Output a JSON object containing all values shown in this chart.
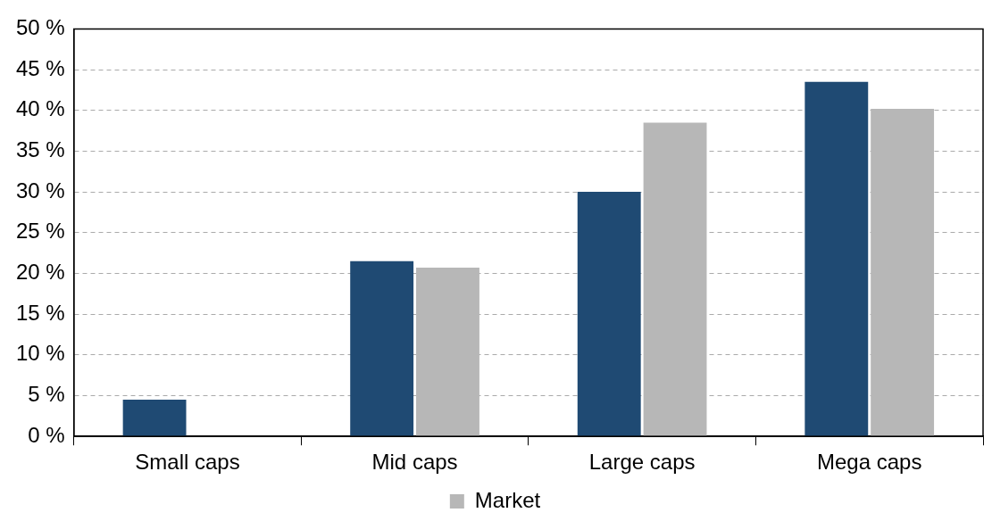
{
  "chart_data": {
    "type": "bar",
    "categories": [
      "Small caps",
      "Mid caps",
      "Large caps",
      "Mega caps"
    ],
    "series": [
      {
        "color": "#1f4a73",
        "values": [
          4.5,
          21.5,
          30,
          43.5
        ]
      },
      {
        "name": "Market",
        "color": "#b7b7b7",
        "values": [
          0,
          20.7,
          38.5,
          40.2
        ]
      }
    ],
    "ylim": [
      0,
      50
    ],
    "yticks": [
      {
        "value": 0,
        "label": "0 %"
      },
      {
        "value": 5,
        "label": "5 %"
      },
      {
        "value": 10,
        "label": "10 %"
      },
      {
        "value": 15,
        "label": "15 %"
      },
      {
        "value": 20,
        "label": "20 %"
      },
      {
        "value": 25,
        "label": "25 %"
      },
      {
        "value": 30,
        "label": "30 %"
      },
      {
        "value": 35,
        "label": "35 %"
      },
      {
        "value": 40,
        "label": "40 %"
      },
      {
        "value": 45,
        "label": "45 %"
      },
      {
        "value": 50,
        "label": "50 %"
      }
    ],
    "grid": "y",
    "legend": "bottom"
  }
}
